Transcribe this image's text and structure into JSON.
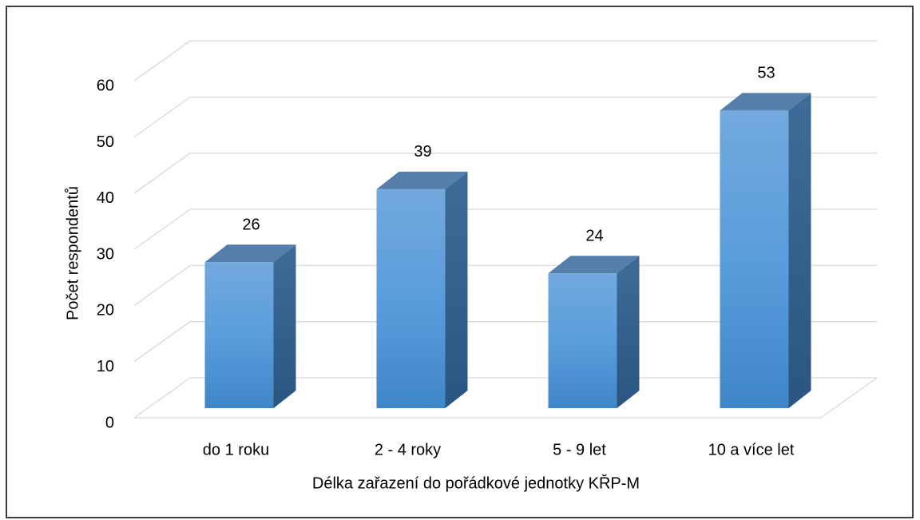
{
  "chart_data": {
    "type": "bar3d",
    "categories": [
      "do 1 roku",
      "2 - 4 roky",
      "5 - 9 let",
      "10 a více let"
    ],
    "values": [
      26,
      39,
      24,
      53
    ],
    "color": "#5b9bd5",
    "ylim": [
      0,
      60
    ],
    "yticks": [
      0,
      10,
      20,
      30,
      40,
      50,
      60
    ],
    "grid": true,
    "x_label": "Délka zařazení do pořádkové jednotky KŘP-M",
    "y_label": "Počet respondentů"
  }
}
